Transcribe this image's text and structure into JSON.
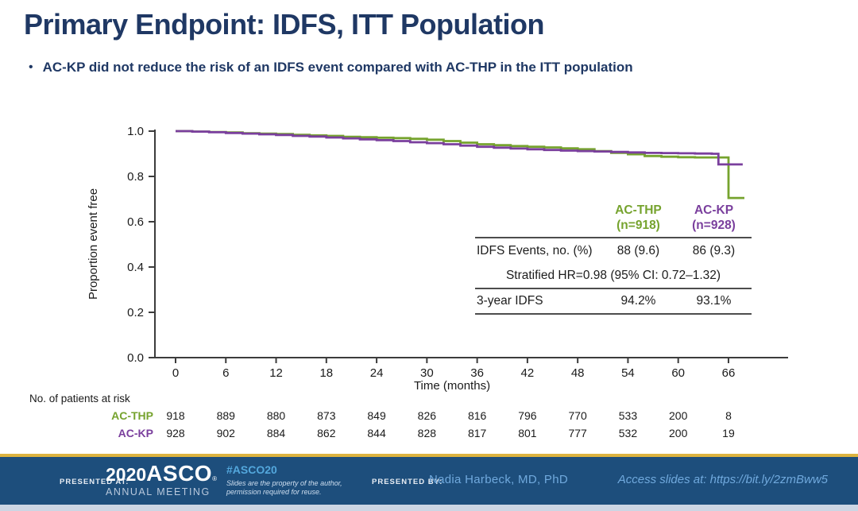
{
  "slide": {
    "title": "Primary Endpoint: IDFS, ITT Population",
    "bullet_marker": "•",
    "bullet": "AC-KP did not reduce the risk of an IDFS event compared with AC-THP in the ITT population"
  },
  "colors": {
    "title_navy": "#1f3864",
    "ac_thp_green": "#76a32e",
    "ac_kp_purple": "#7a3f9d",
    "footer_bar_blue": "#1d4e7c",
    "footer_gold": "#dcb33f",
    "hashtag_blue": "#53a7dc",
    "footer_light_blue": "#70a9dd"
  },
  "chart_data": {
    "type": "line",
    "subtype": "kaplan-meier-step",
    "xlabel": "Time (months)",
    "ylabel": "Proportion event free",
    "xticks": [
      0,
      6,
      12,
      18,
      24,
      30,
      36,
      42,
      48,
      54,
      60,
      66
    ],
    "ytick_labels": [
      "0.0",
      "0.2",
      "0.4",
      "0.6",
      "0.8",
      "1.0"
    ],
    "yticks": [
      0.0,
      0.2,
      0.4,
      0.6,
      0.8,
      1.0
    ],
    "xlim": [
      0,
      69
    ],
    "ylim": [
      0.0,
      1.0
    ],
    "grid": false,
    "legend_position": "none",
    "series": [
      {
        "name": "AC-THP",
        "color": "#76a32e",
        "end_month": 67.9,
        "steps": [
          [
            0,
            1.0
          ],
          [
            2,
            0.998
          ],
          [
            4,
            0.996
          ],
          [
            6,
            0.994
          ],
          [
            8,
            0.991
          ],
          [
            10,
            0.989
          ],
          [
            12,
            0.987
          ],
          [
            14,
            0.984
          ],
          [
            16,
            0.981
          ],
          [
            18,
            0.979
          ],
          [
            20,
            0.975
          ],
          [
            22,
            0.973
          ],
          [
            24,
            0.971
          ],
          [
            26,
            0.969
          ],
          [
            28,
            0.966
          ],
          [
            30,
            0.962
          ],
          [
            32,
            0.956
          ],
          [
            34,
            0.949
          ],
          [
            36,
            0.942
          ],
          [
            38,
            0.938
          ],
          [
            40,
            0.934
          ],
          [
            42,
            0.931
          ],
          [
            44,
            0.928
          ],
          [
            46,
            0.924
          ],
          [
            48,
            0.92
          ],
          [
            50,
            0.912
          ],
          [
            52,
            0.904
          ],
          [
            54,
            0.898
          ],
          [
            56,
            0.89
          ],
          [
            58,
            0.887
          ],
          [
            60,
            0.885
          ],
          [
            62,
            0.884
          ],
          [
            66,
            0.883
          ],
          [
            66,
            0.705
          ]
        ]
      },
      {
        "name": "AC-KP",
        "color": "#7a3f9d",
        "end_month": 67.7,
        "steps": [
          [
            0,
            1.0
          ],
          [
            2,
            0.998
          ],
          [
            4,
            0.995
          ],
          [
            6,
            0.992
          ],
          [
            8,
            0.989
          ],
          [
            10,
            0.986
          ],
          [
            12,
            0.983
          ],
          [
            14,
            0.979
          ],
          [
            16,
            0.976
          ],
          [
            18,
            0.972
          ],
          [
            20,
            0.968
          ],
          [
            22,
            0.964
          ],
          [
            24,
            0.96
          ],
          [
            26,
            0.956
          ],
          [
            28,
            0.951
          ],
          [
            30,
            0.947
          ],
          [
            32,
            0.942
          ],
          [
            34,
            0.936
          ],
          [
            36,
            0.931
          ],
          [
            38,
            0.927
          ],
          [
            40,
            0.923
          ],
          [
            42,
            0.92
          ],
          [
            44,
            0.917
          ],
          [
            46,
            0.914
          ],
          [
            48,
            0.912
          ],
          [
            50,
            0.91
          ],
          [
            52,
            0.908
          ],
          [
            54,
            0.906
          ],
          [
            56,
            0.904
          ],
          [
            58,
            0.903
          ],
          [
            60,
            0.902
          ],
          [
            62,
            0.901
          ],
          [
            64,
            0.9
          ],
          [
            64.8,
            0.853
          ]
        ]
      }
    ],
    "at_risk": {
      "label": "No. of patients at risk",
      "rows": [
        {
          "name": "AC-THP",
          "color": "#76a32e",
          "values": [
            918,
            889,
            880,
            873,
            849,
            826,
            816,
            796,
            770,
            533,
            200,
            8
          ]
        },
        {
          "name": "AC-KP",
          "color": "#7a3f9d",
          "values": [
            928,
            902,
            884,
            862,
            844,
            828,
            817,
            801,
            777,
            532,
            200,
            19
          ]
        }
      ]
    }
  },
  "results_table": {
    "col_headers": [
      {
        "line1": "AC-THP",
        "line2": "(n=918)"
      },
      {
        "line1": "AC-KP",
        "line2": "(n=928)"
      }
    ],
    "rows": [
      {
        "label": "IDFS Events, no. (%)",
        "thp": "88 (9.6)",
        "kp": "86 (9.3)"
      },
      {
        "span": "Stratified HR=0.98 (95% CI: 0.72–1.32)"
      },
      {
        "label": "3-year IDFS",
        "thp": "94.2%",
        "kp": "93.1%"
      }
    ]
  },
  "footer": {
    "presented_at_label": "PRESENTED AT:",
    "logo_year": "2020",
    "logo_name": "ASCO",
    "logo_reg": "®",
    "logo_sub": "ANNUAL MEETING",
    "hashtag": "#ASCO20",
    "disclaimer_line1": "Slides are the property of the author,",
    "disclaimer_line2": "permission required for reuse.",
    "presented_by_label": "PRESENTED BY:",
    "presenter": "Nadia Harbeck, MD, PhD",
    "access": "Access slides at: https://bit.ly/2zmBww5"
  }
}
